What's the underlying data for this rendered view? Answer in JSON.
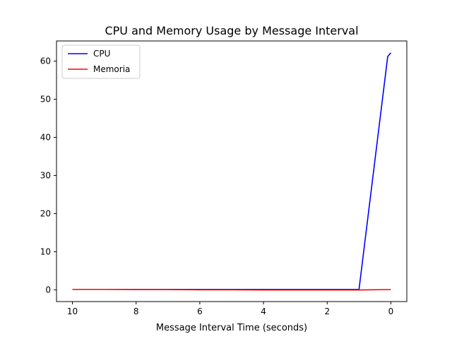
{
  "chart_data": {
    "type": "line",
    "title": "CPU and Memory Usage by Message Interval",
    "xlabel": "Message Interval Time (seconds)",
    "ylabel": "",
    "xlim": [
      10.5,
      -0.5
    ],
    "ylim": [
      -3.1,
      65.3
    ],
    "x_inverted": true,
    "xticks": [
      10,
      8,
      6,
      4,
      2,
      0
    ],
    "yticks": [
      0,
      10,
      20,
      30,
      40,
      50,
      60
    ],
    "grid": false,
    "legend": "top-left",
    "series": [
      {
        "name": "CPU",
        "color": "#0000ff",
        "x": [
          10,
          9,
          8,
          7,
          6,
          5,
          4,
          3,
          2,
          1,
          0.1,
          0
        ],
        "y": [
          0.1,
          0.1,
          0.1,
          0.1,
          0.1,
          0.1,
          0.1,
          0.1,
          0.1,
          0.1,
          61.2,
          62.2
        ]
      },
      {
        "name": "Memoria",
        "color": "#ff0000",
        "x": [
          10,
          9,
          8,
          7,
          6,
          5,
          4,
          3,
          2,
          1,
          0.1,
          0
        ],
        "y": [
          0.1,
          0.1,
          0.05,
          0.05,
          0.0,
          0.0,
          -0.05,
          -0.05,
          -0.05,
          -0.05,
          0.05,
          0.05
        ]
      }
    ]
  }
}
